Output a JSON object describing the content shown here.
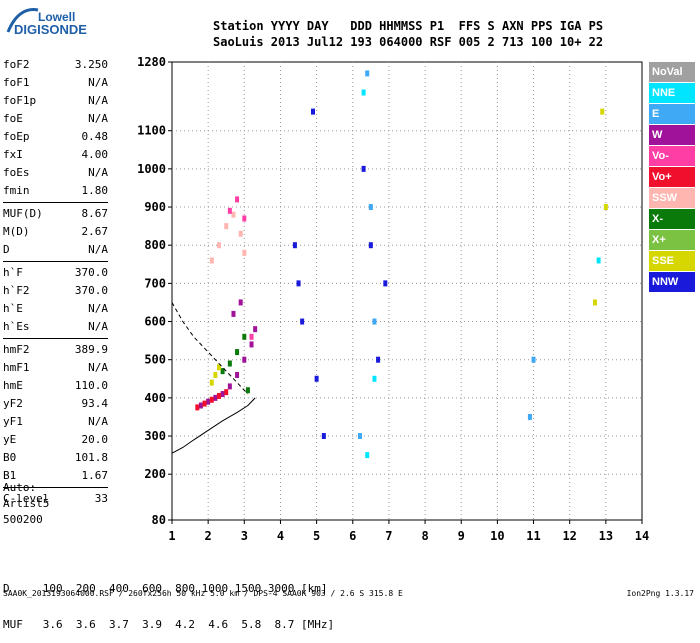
{
  "logo": {
    "line1": "Lowell",
    "line2": "DIGISONDE"
  },
  "header": {
    "row1": "Station YYYY DAY   DDD HHMMSS P1  FFS S AXN PPS IGA PS",
    "row2": "SaoLuis 2013 Jul12 193 064000 RSF 005 2 713 100 10+ 22"
  },
  "params": [
    {
      "k": "foF2",
      "v": "3.250"
    },
    {
      "k": "foF1",
      "v": "N/A"
    },
    {
      "k": "foF1p",
      "v": "N/A"
    },
    {
      "k": "foE",
      "v": "N/A"
    },
    {
      "k": "foEp",
      "v": "0.48"
    },
    {
      "k": "fxI",
      "v": "4.00"
    },
    {
      "k": "foEs",
      "v": "N/A"
    },
    {
      "k": "fmin",
      "v": "1.80"
    },
    {
      "k": "MUF(D)",
      "v": "8.67"
    },
    {
      "k": "M(D)",
      "v": "2.67"
    },
    {
      "k": "D",
      "v": "N/A"
    },
    {
      "k": "h`F",
      "v": "370.0"
    },
    {
      "k": "h`F2",
      "v": "370.0"
    },
    {
      "k": "h`E",
      "v": "N/A"
    },
    {
      "k": "h`Es",
      "v": "N/A"
    },
    {
      "k": "hmF2",
      "v": "389.9"
    },
    {
      "k": "hmF1",
      "v": "N/A"
    },
    {
      "k": "hmE",
      "v": "110.0"
    },
    {
      "k": "yF2",
      "v": "93.4"
    },
    {
      "k": "yF1",
      "v": "N/A"
    },
    {
      "k": "yE",
      "v": "20.0"
    },
    {
      "k": "B0",
      "v": "101.8"
    },
    {
      "k": "B1",
      "v": "1.67"
    },
    {
      "k": "C-level",
      "v": "33"
    }
  ],
  "auto": {
    "line1": "Auto:",
    "line2": "Artist5",
    "line3": "500200"
  },
  "muf_table": {
    "row1": "D     100  200  400  600  800 1000 1500 3000 [km]",
    "row2": "MUF   3.6  3.6  3.7  3.9  4.2  4.6  5.8  8.7 [MHz]"
  },
  "footer": {
    "left": "SAA0K_2013193064000.RSF / 260fx256h 50 kHz 5.0 km / DPS-4 SAA0K 903 / 2.6 S 315.8 E",
    "right": "Ion2Png 1.3.17"
  },
  "legend": [
    {
      "label": "NoVal",
      "color": "#a0a0a0"
    },
    {
      "label": "NNE",
      "color": "#00e5ff"
    },
    {
      "label": "E",
      "color": "#3fa9f5"
    },
    {
      "label": "W",
      "color": "#a0129a"
    },
    {
      "label": "Vo-",
      "color": "#ff3ea5"
    },
    {
      "label": "Vo+",
      "color": "#f0102e"
    },
    {
      "label": "SSW",
      "color": "#ffb5b0"
    },
    {
      "label": "X-",
      "color": "#0a7a0a"
    },
    {
      "label": "X+",
      "color": "#7bc142"
    },
    {
      "label": "SSE",
      "color": "#d6d600"
    },
    {
      "label": "NNW",
      "color": "#1a1adb"
    }
  ],
  "chart_data": {
    "type": "scatter",
    "title": "",
    "xlabel": "",
    "ylabel": "",
    "xlim": [
      1,
      14
    ],
    "ylim": [
      80,
      1280
    ],
    "x_ticks": [
      1,
      2,
      3,
      4,
      5,
      6,
      7,
      8,
      9,
      10,
      11,
      12,
      13,
      14
    ],
    "y_ticks": [
      80,
      200,
      300,
      400,
      500,
      600,
      700,
      800,
      900,
      1000,
      1100,
      1280
    ],
    "grid": "dotted",
    "legend_position": "right",
    "series": [
      {
        "color": "#a0129a",
        "points": [
          [
            1.8,
            380
          ],
          [
            2.0,
            390
          ],
          [
            2.2,
            400
          ],
          [
            2.4,
            410
          ],
          [
            2.6,
            430
          ],
          [
            2.8,
            460
          ],
          [
            3.0,
            500
          ],
          [
            3.2,
            540
          ],
          [
            3.3,
            580
          ],
          [
            2.7,
            620
          ],
          [
            2.9,
            650
          ]
        ]
      },
      {
        "color": "#f0102e",
        "points": [
          [
            1.7,
            375
          ],
          [
            1.9,
            385
          ],
          [
            2.1,
            395
          ],
          [
            2.3,
            405
          ],
          [
            2.5,
            415
          ]
        ]
      },
      {
        "color": "#0a7a0a",
        "points": [
          [
            2.4,
            470
          ],
          [
            2.6,
            490
          ],
          [
            2.8,
            520
          ],
          [
            3.0,
            560
          ],
          [
            3.1,
            420
          ]
        ]
      },
      {
        "color": "#d6d600",
        "points": [
          [
            2.1,
            440
          ],
          [
            2.2,
            460
          ],
          [
            2.3,
            480
          ],
          [
            12.9,
            1150
          ],
          [
            13.0,
            900
          ],
          [
            12.7,
            650
          ]
        ]
      },
      {
        "color": "#ffb5b0",
        "points": [
          [
            2.1,
            760
          ],
          [
            2.3,
            800
          ],
          [
            2.5,
            850
          ],
          [
            2.7,
            880
          ],
          [
            2.9,
            830
          ],
          [
            3.0,
            780
          ]
        ]
      },
      {
        "color": "#ff3ea5",
        "points": [
          [
            2.6,
            890
          ],
          [
            2.8,
            920
          ],
          [
            3.0,
            870
          ],
          [
            3.2,
            560
          ]
        ]
      },
      {
        "color": "#1a1adb",
        "points": [
          [
            4.5,
            700
          ],
          [
            4.6,
            600
          ],
          [
            4.4,
            800
          ],
          [
            5.0,
            450
          ],
          [
            5.2,
            300
          ],
          [
            6.3,
            1000
          ],
          [
            6.5,
            800
          ],
          [
            6.7,
            500
          ],
          [
            6.9,
            700
          ],
          [
            4.9,
            1150
          ]
        ]
      },
      {
        "color": "#3fa9f5",
        "points": [
          [
            6.4,
            1250
          ],
          [
            6.5,
            900
          ],
          [
            6.6,
            600
          ],
          [
            6.2,
            300
          ],
          [
            11.0,
            500
          ],
          [
            10.9,
            350
          ]
        ]
      },
      {
        "color": "#00e5ff",
        "points": [
          [
            6.3,
            1200
          ],
          [
            6.6,
            450
          ],
          [
            6.4,
            250
          ],
          [
            12.8,
            760
          ]
        ]
      }
    ],
    "curves": [
      {
        "style": "solid",
        "points": [
          [
            1.0,
            255
          ],
          [
            1.3,
            270
          ],
          [
            1.6,
            290
          ],
          [
            2.0,
            315
          ],
          [
            2.4,
            340
          ],
          [
            2.8,
            362
          ],
          [
            3.1,
            380
          ],
          [
            3.3,
            400
          ]
        ]
      },
      {
        "style": "dashed",
        "points": [
          [
            1.0,
            650
          ],
          [
            1.3,
            600
          ],
          [
            1.6,
            560
          ],
          [
            2.0,
            520
          ],
          [
            2.4,
            480
          ],
          [
            2.8,
            440
          ],
          [
            3.1,
            410
          ]
        ]
      }
    ]
  }
}
